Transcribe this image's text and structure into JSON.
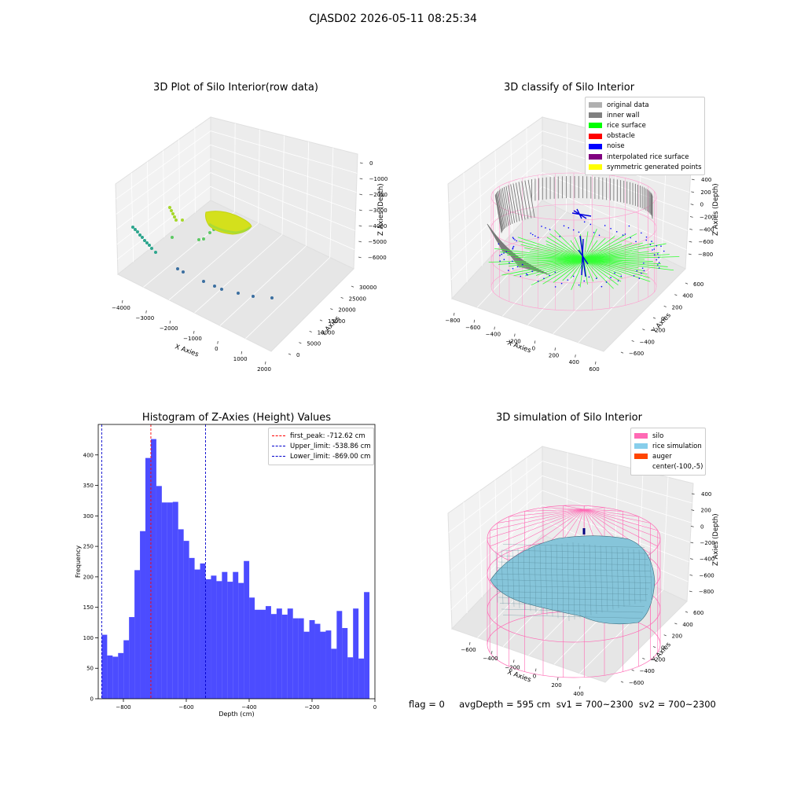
{
  "figure": {
    "title": "CJASD02 2026-05-11 08:25:34",
    "footer": "flag = 0     avgDepth = 595 cm  sv1 = 700~2300  sv2 = 700~2300"
  },
  "panels": {
    "raw": {
      "title": "3D Plot of Silo Interior(row data)",
      "xlabel": "X Axies",
      "ylabel": "Y Axies",
      "zlabel": "Z Axies (Depth)",
      "xticks": [
        "−4000",
        "−3000",
        "−2000",
        "−1000",
        "0",
        "1000",
        "2000"
      ],
      "yticks": [
        "0",
        "5000",
        "10000",
        "15000",
        "20000",
        "25000",
        "30000"
      ],
      "zticks": [
        "0",
        "−1000",
        "−2000",
        "−3000",
        "−4000",
        "−5000",
        "−6000"
      ]
    },
    "classify": {
      "title": "3D classify of Silo Interior",
      "xlabel": "X Axies",
      "ylabel": "Y Axies",
      "zlabel": "Z Axies (Depth)",
      "xticks": [
        "−800",
        "−600",
        "−400",
        "−200",
        "0",
        "200",
        "400",
        "600"
      ],
      "yticks": [
        "−600",
        "−400",
        "−200",
        "0",
        "200",
        "400",
        "600"
      ],
      "zticks": [
        "400",
        "200",
        "0",
        "−200",
        "−400",
        "−600",
        "−800"
      ],
      "legend": [
        {
          "label": "original data",
          "color": "#b0b0b0"
        },
        {
          "label": "inner wall",
          "color": "#808080"
        },
        {
          "label": "rice surface",
          "color": "#00ff00"
        },
        {
          "label": "obstacle",
          "color": "#ff0000"
        },
        {
          "label": "noise",
          "color": "#0000ff"
        },
        {
          "label": "interpolated rice surface",
          "color": "#800080"
        },
        {
          "label": "symmetric generated points",
          "color": "#ffff00"
        }
      ]
    },
    "simulation": {
      "title": "3D simulation of Silo Interior",
      "xlabel": "X Axies",
      "ylabel": "Y Axies",
      "zlabel": "Z Axies (Depth)",
      "xticks": [
        "−600",
        "−400",
        "−200",
        "0",
        "200",
        "400"
      ],
      "yticks": [
        "−600",
        "−400",
        "−200",
        "0",
        "200",
        "400",
        "600"
      ],
      "zticks": [
        "400",
        "200",
        "0",
        "−200",
        "−400",
        "−600",
        "−800"
      ],
      "legend": [
        {
          "label": "silo",
          "color": "#ff69b4"
        },
        {
          "label": "rice simulation",
          "color": "#87ceeb"
        },
        {
          "label": "auger",
          "color": "#ff4500"
        },
        {
          "label": "center(-100,-5)",
          "color": ""
        }
      ]
    }
  },
  "chart_data": {
    "type": "bar",
    "title": "Histogram of Z-Axies (Height) Values",
    "xlabel": "Depth (cm)",
    "ylabel": "Frequency",
    "xlim": [
      -880,
      0
    ],
    "ylim": [
      0,
      450
    ],
    "xticks": [
      -800,
      -600,
      -400,
      -200,
      0
    ],
    "yticks": [
      0,
      50,
      100,
      150,
      200,
      250,
      300,
      350,
      400
    ],
    "bar_color": "#0000ff",
    "bin_start": -869,
    "bin_width": 17.38,
    "values": [
      105,
      71,
      69,
      75,
      96,
      134,
      211,
      275,
      395,
      426,
      349,
      322,
      322,
      323,
      278,
      259,
      231,
      212,
      222,
      196,
      202,
      193,
      208,
      192,
      208,
      190,
      226,
      166,
      146,
      146,
      152,
      139,
      148,
      138,
      148,
      132,
      132,
      110,
      129,
      123,
      110,
      112,
      82,
      144,
      116,
      68,
      148,
      66,
      175
    ],
    "vlines": [
      {
        "label": "first_peak: -712.62 cm",
        "x": -712.62,
        "color": "#ff0000"
      },
      {
        "label": "Upper_limit: -538.86 cm",
        "x": -538.86,
        "color": "#0000cc"
      },
      {
        "label": "Lower_limit: -869.00 cm",
        "x": -869.0,
        "color": "#0000cc"
      }
    ]
  }
}
